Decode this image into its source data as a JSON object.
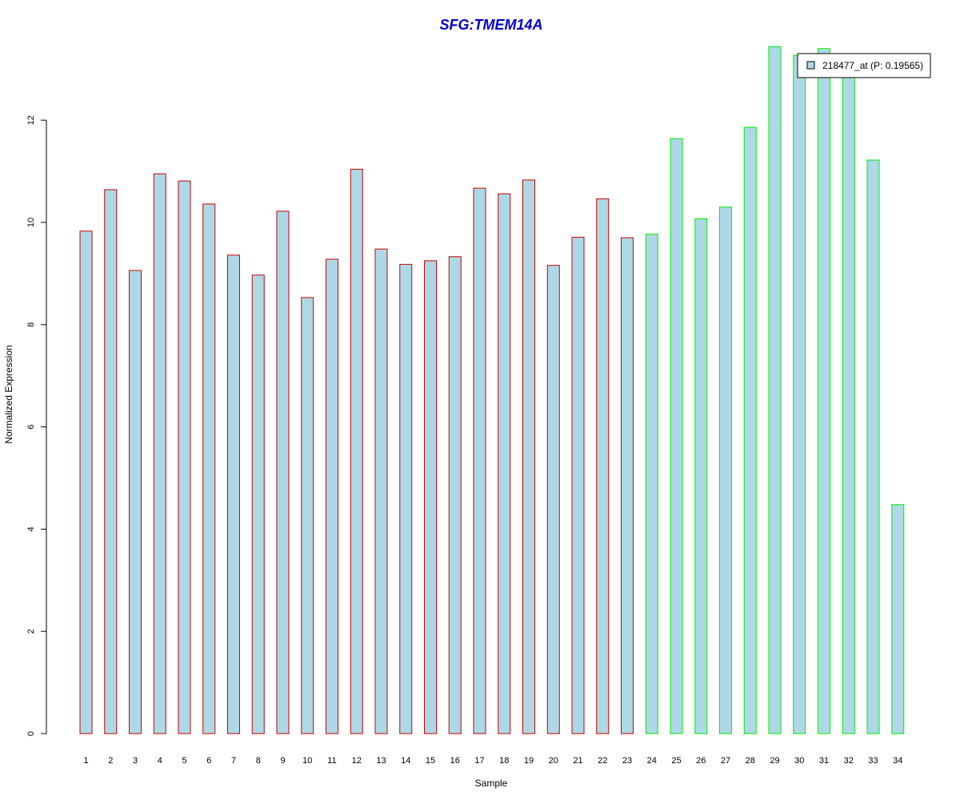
{
  "chart_data": {
    "type": "bar",
    "title": "SFG:TMEM14A",
    "xlabel": "Sample",
    "ylabel": "Normalized Expression",
    "ylim": [
      0,
      13.6
    ],
    "yticks": [
      "0",
      "2",
      "4",
      "6",
      "8",
      "10",
      "12"
    ],
    "grid": false,
    "legend_position": "top-right",
    "legend_entries": [
      "218477_at (P: 0.19565)"
    ],
    "categories": [
      "1",
      "2",
      "3",
      "4",
      "5",
      "6",
      "7",
      "8",
      "9",
      "10",
      "11",
      "12",
      "13",
      "14",
      "15",
      "16",
      "17",
      "18",
      "19",
      "20",
      "21",
      "22",
      "23",
      "24",
      "25",
      "26",
      "27",
      "28",
      "29",
      "30",
      "31",
      "32",
      "33",
      "34"
    ],
    "series": [
      {
        "values": [
          9.83,
          10.64,
          9.06,
          10.95,
          10.81,
          10.36,
          9.36,
          8.97,
          10.22,
          8.53,
          9.28,
          11.04,
          9.48,
          9.18,
          9.25,
          9.33,
          10.67,
          10.56,
          10.83,
          9.16,
          9.71,
          10.46,
          9.7,
          9.77,
          11.64,
          10.07,
          10.3,
          11.86,
          13.44,
          13.27,
          13.4,
          13.0,
          11.22,
          4.48
        ]
      }
    ],
    "groups": [
      {
        "from_index": 0,
        "to_index": 22
      },
      {
        "from_index": 23,
        "to_index": 33
      }
    ]
  },
  "colors": {
    "bar_fill": "#add8e6",
    "group1_border": "#cc0000",
    "group2_border": "#00ee00",
    "title": "#0000cc",
    "axis": "#000000"
  }
}
